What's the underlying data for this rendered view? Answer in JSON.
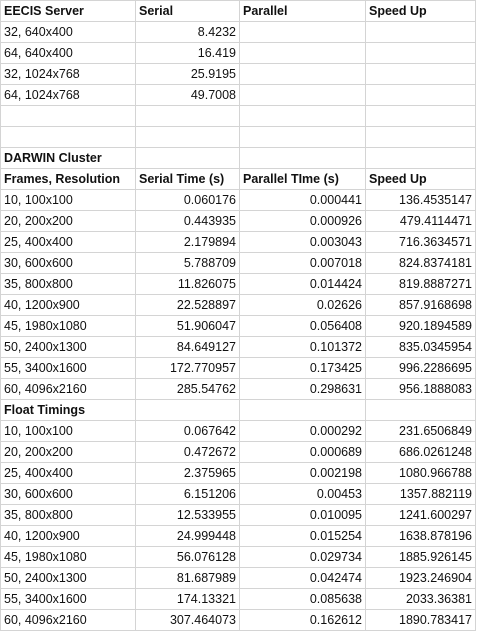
{
  "rows": [
    [
      {
        "t": "EECIS Server",
        "b": 1
      },
      {
        "t": "Serial",
        "b": 1
      },
      {
        "t": "Parallel",
        "b": 1
      },
      {
        "t": "Speed Up",
        "b": 1
      }
    ],
    [
      {
        "t": "32, 640x400"
      },
      {
        "t": "8.4232",
        "n": 1
      },
      {
        "t": ""
      },
      {
        "t": ""
      }
    ],
    [
      {
        "t": "64, 640x400"
      },
      {
        "t": "16.419",
        "n": 1
      },
      {
        "t": ""
      },
      {
        "t": ""
      }
    ],
    [
      {
        "t": "32, 1024x768"
      },
      {
        "t": "25.9195",
        "n": 1
      },
      {
        "t": ""
      },
      {
        "t": ""
      }
    ],
    [
      {
        "t": "64, 1024x768"
      },
      {
        "t": "49.7008",
        "n": 1
      },
      {
        "t": ""
      },
      {
        "t": ""
      }
    ],
    [
      {
        "t": ""
      },
      {
        "t": ""
      },
      {
        "t": ""
      },
      {
        "t": ""
      }
    ],
    [
      {
        "t": ""
      },
      {
        "t": ""
      },
      {
        "t": ""
      },
      {
        "t": ""
      }
    ],
    [
      {
        "t": "DARWIN Cluster",
        "b": 1
      },
      {
        "t": ""
      },
      {
        "t": ""
      },
      {
        "t": ""
      }
    ],
    [
      {
        "t": "Frames, Resolution",
        "b": 1
      },
      {
        "t": "Serial Time (s)",
        "b": 1
      },
      {
        "t": "Parallel TIme (s)",
        "b": 1
      },
      {
        "t": "Speed Up",
        "b": 1
      }
    ],
    [
      {
        "t": "10, 100x100"
      },
      {
        "t": "0.060176",
        "n": 1
      },
      {
        "t": "0.000441",
        "n": 1
      },
      {
        "t": "136.4535147",
        "n": 1
      }
    ],
    [
      {
        "t": "20, 200x200"
      },
      {
        "t": "0.443935",
        "n": 1
      },
      {
        "t": "0.000926",
        "n": 1
      },
      {
        "t": "479.4114471",
        "n": 1
      }
    ],
    [
      {
        "t": "25, 400x400"
      },
      {
        "t": "2.179894",
        "n": 1
      },
      {
        "t": "0.003043",
        "n": 1
      },
      {
        "t": "716.3634571",
        "n": 1
      }
    ],
    [
      {
        "t": "30, 600x600"
      },
      {
        "t": "5.788709",
        "n": 1
      },
      {
        "t": "0.007018",
        "n": 1
      },
      {
        "t": "824.8374181",
        "n": 1
      }
    ],
    [
      {
        "t": "35, 800x800"
      },
      {
        "t": "11.826075",
        "n": 1
      },
      {
        "t": "0.014424",
        "n": 1
      },
      {
        "t": "819.8887271",
        "n": 1
      }
    ],
    [
      {
        "t": "40, 1200x900"
      },
      {
        "t": "22.528897",
        "n": 1
      },
      {
        "t": "0.02626",
        "n": 1
      },
      {
        "t": "857.9168698",
        "n": 1
      }
    ],
    [
      {
        "t": "45, 1980x1080"
      },
      {
        "t": "51.906047",
        "n": 1
      },
      {
        "t": "0.056408",
        "n": 1
      },
      {
        "t": "920.1894589",
        "n": 1
      }
    ],
    [
      {
        "t": "50, 2400x1300"
      },
      {
        "t": "84.649127",
        "n": 1
      },
      {
        "t": "0.101372",
        "n": 1
      },
      {
        "t": "835.0345954",
        "n": 1
      }
    ],
    [
      {
        "t": "55, 3400x1600"
      },
      {
        "t": "172.770957",
        "n": 1
      },
      {
        "t": "0.173425",
        "n": 1
      },
      {
        "t": "996.2286695",
        "n": 1
      }
    ],
    [
      {
        "t": "60, 4096x2160"
      },
      {
        "t": "285.54762",
        "n": 1
      },
      {
        "t": "0.298631",
        "n": 1
      },
      {
        "t": "956.1888083",
        "n": 1
      }
    ],
    [
      {
        "t": "Float Timings",
        "b": 1
      },
      {
        "t": ""
      },
      {
        "t": ""
      },
      {
        "t": ""
      }
    ],
    [
      {
        "t": "10, 100x100"
      },
      {
        "t": "0.067642",
        "n": 1
      },
      {
        "t": "0.000292",
        "n": 1
      },
      {
        "t": "231.6506849",
        "n": 1
      }
    ],
    [
      {
        "t": "20, 200x200"
      },
      {
        "t": "0.472672",
        "n": 1
      },
      {
        "t": "0.000689",
        "n": 1
      },
      {
        "t": "686.0261248",
        "n": 1
      }
    ],
    [
      {
        "t": "25, 400x400"
      },
      {
        "t": "2.375965",
        "n": 1
      },
      {
        "t": "0.002198",
        "n": 1
      },
      {
        "t": "1080.966788",
        "n": 1
      }
    ],
    [
      {
        "t": "30, 600x600"
      },
      {
        "t": "6.151206",
        "n": 1
      },
      {
        "t": "0.00453",
        "n": 1
      },
      {
        "t": "1357.882119",
        "n": 1
      }
    ],
    [
      {
        "t": "35, 800x800"
      },
      {
        "t": "12.533955",
        "n": 1
      },
      {
        "t": "0.010095",
        "n": 1
      },
      {
        "t": "1241.600297",
        "n": 1
      }
    ],
    [
      {
        "t": "40, 1200x900"
      },
      {
        "t": "24.999448",
        "n": 1
      },
      {
        "t": "0.015254",
        "n": 1
      },
      {
        "t": "1638.878196",
        "n": 1
      }
    ],
    [
      {
        "t": "45, 1980x1080"
      },
      {
        "t": "56.076128",
        "n": 1
      },
      {
        "t": "0.029734",
        "n": 1
      },
      {
        "t": "1885.926145",
        "n": 1
      }
    ],
    [
      {
        "t": "50, 2400x1300"
      },
      {
        "t": "81.687989",
        "n": 1
      },
      {
        "t": "0.042474",
        "n": 1
      },
      {
        "t": "1923.246904",
        "n": 1
      }
    ],
    [
      {
        "t": "55, 3400x1600"
      },
      {
        "t": "174.13321",
        "n": 1
      },
      {
        "t": "0.085638",
        "n": 1
      },
      {
        "t": "2033.36381",
        "n": 1
      }
    ],
    [
      {
        "t": "60, 4096x2160"
      },
      {
        "t": "307.464073",
        "n": 1
      },
      {
        "t": "0.162612",
        "n": 1
      },
      {
        "t": "1890.783417",
        "n": 1
      }
    ]
  ]
}
